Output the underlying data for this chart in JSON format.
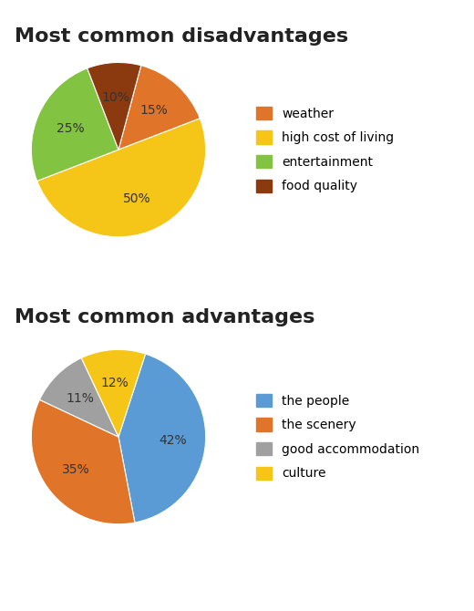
{
  "disadvantages": {
    "title": "Most common disadvantages",
    "labels": [
      "weather",
      "high cost of living",
      "entertainment",
      "food quality"
    ],
    "values": [
      15,
      50,
      25,
      10
    ],
    "colors": [
      "#e0752a",
      "#f5c518",
      "#82c341",
      "#8B3A0F"
    ],
    "pct_labels": [
      "15%",
      "50%",
      "25%",
      "10%"
    ],
    "startangle": 75
  },
  "advantages": {
    "title": "Most common advantages",
    "labels": [
      "the people",
      "the scenery",
      "good accommodation",
      "culture"
    ],
    "values": [
      42,
      35,
      11,
      12
    ],
    "colors": [
      "#5b9bd5",
      "#e0752a",
      "#a0a0a0",
      "#f5c518"
    ],
    "pct_labels": [
      "42%",
      "35%",
      "11%",
      "12%"
    ],
    "startangle": 72
  },
  "title_fontsize": 16,
  "label_fontsize": 10,
  "legend_fontsize": 10,
  "bg_color": "#ffffff"
}
